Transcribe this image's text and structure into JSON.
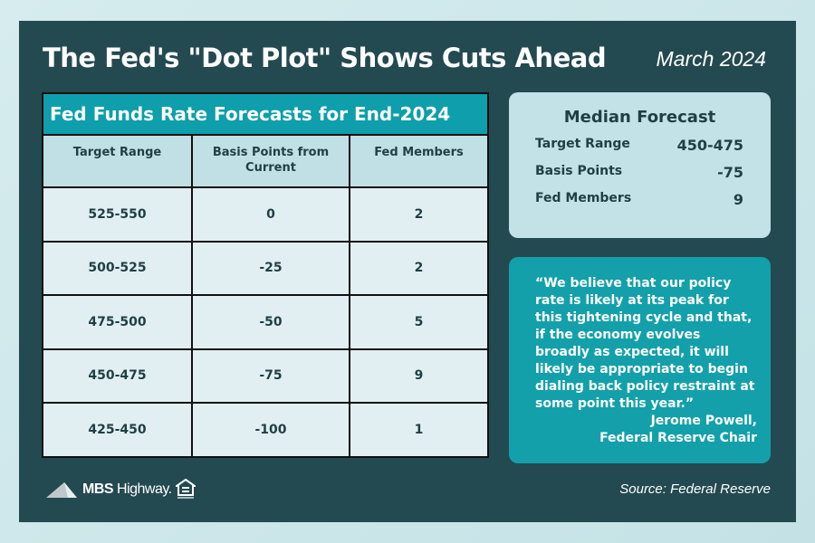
{
  "header": {
    "title": "The Fed's \"Dot Plot\" Shows Cuts Ahead",
    "date": "March 2024"
  },
  "table": {
    "title": "Fed Funds Rate Forecasts for End-2024",
    "columns": [
      "Target Range",
      "Basis Points from Current",
      "Fed Members"
    ],
    "rows": [
      [
        "525-550",
        "0",
        "2"
      ],
      [
        "500-525",
        "-25",
        "2"
      ],
      [
        "475-500",
        "-50",
        "5"
      ],
      [
        "450-475",
        "-75",
        "9"
      ],
      [
        "425-450",
        "-100",
        "1"
      ]
    ]
  },
  "median": {
    "title": "Median Forecast",
    "items": [
      {
        "label": "Target Range",
        "value": "450-475"
      },
      {
        "label": "Basis Points",
        "value": "-75"
      },
      {
        "label": "Fed Members",
        "value": "9"
      }
    ]
  },
  "quote": {
    "text": "“We believe that our policy rate is likely at its peak for this tightening cycle and that, if the economy evolves broadly as expected, it will likely be appropriate to begin dialing back policy restraint at some point this year.”",
    "author": "Jerome Powell,",
    "role": "Federal Reserve Chair"
  },
  "footer": {
    "logo": "MBS Highway.",
    "source": "Source: Federal Reserve"
  },
  "colors": {
    "background": "#234a50",
    "accent": "#0f9eab",
    "header_cell": "#c0e0e5",
    "body_cell": "#e2eff2"
  }
}
